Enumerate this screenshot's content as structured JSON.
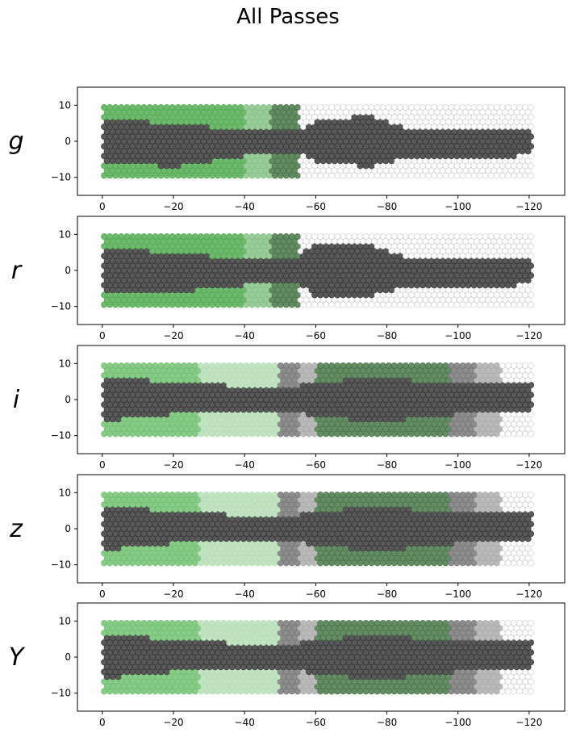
{
  "chart_data": {
    "type": "scatter",
    "title": "All Passes",
    "xlim": [
      7,
      -130
    ],
    "ylim": [
      -15,
      15
    ],
    "xticks": [
      0,
      -20,
      -40,
      -60,
      -80,
      -100,
      -120
    ],
    "yticks": [
      10,
      0,
      -10
    ],
    "grid": false,
    "panels": [
      {
        "label": "g",
        "outer_regions": [
          {
            "x_from": 0,
            "x_to": -40,
            "color": "#4aa84a"
          },
          {
            "x_from": -40,
            "x_to": -47,
            "color": "#7fbf7f"
          },
          {
            "x_from": -47,
            "x_to": -55,
            "color": "#3d6e3d"
          },
          {
            "x_from": -55,
            "x_to": -121,
            "color": "none"
          }
        ],
        "dark_band": [
          [
            0,
            -6,
            6
          ],
          [
            -20,
            -7,
            5
          ],
          [
            -40,
            -4,
            3
          ],
          [
            -55,
            -3,
            3
          ],
          [
            -60,
            -6,
            6
          ],
          [
            -75,
            -7,
            7
          ],
          [
            -85,
            -5,
            4
          ],
          [
            -120,
            -4,
            3
          ]
        ],
        "dark_color": "#3c3c3c"
      },
      {
        "label": "r",
        "outer_regions": [
          {
            "x_from": 0,
            "x_to": -40,
            "color": "#4aa84a"
          },
          {
            "x_from": -40,
            "x_to": -47,
            "color": "#7fbf7f"
          },
          {
            "x_from": -47,
            "x_to": -55,
            "color": "#3d6e3d"
          },
          {
            "x_from": -55,
            "x_to": -121,
            "color": "none"
          }
        ],
        "dark_band": [
          [
            0,
            -6,
            6
          ],
          [
            -20,
            -6,
            5
          ],
          [
            -40,
            -4,
            3
          ],
          [
            -55,
            -4,
            4
          ],
          [
            -60,
            -7,
            7
          ],
          [
            -75,
            -7,
            7
          ],
          [
            -85,
            -5,
            4
          ],
          [
            -120,
            -4,
            3
          ]
        ],
        "dark_color": "#3c3c3c"
      },
      {
        "label": "i",
        "outer_regions": [
          {
            "x_from": 0,
            "x_to": -27,
            "color": "#6abd6a"
          },
          {
            "x_from": -27,
            "x_to": -50,
            "color": "#b3dcb3"
          },
          {
            "x_from": -50,
            "x_to": -55,
            "color": "#707070"
          },
          {
            "x_from": -55,
            "x_to": -60,
            "color": "#a8a8a8"
          },
          {
            "x_from": -60,
            "x_to": -98,
            "color": "#3f6f3f"
          },
          {
            "x_from": -98,
            "x_to": -105,
            "color": "#707070"
          },
          {
            "x_from": -105,
            "x_to": -112,
            "color": "#a8a8a8"
          },
          {
            "x_from": -112,
            "x_to": -121,
            "color": "none"
          }
        ],
        "dark_band": [
          [
            0,
            -6,
            6
          ],
          [
            -20,
            -4,
            5
          ],
          [
            -50,
            -3,
            3
          ],
          [
            -62,
            -5,
            5
          ],
          [
            -80,
            -6,
            6
          ],
          [
            -100,
            -4,
            4
          ],
          [
            -120,
            -4,
            4
          ]
        ],
        "dark_color": "#3c3c3c"
      },
      {
        "label": "z",
        "outer_regions": [
          {
            "x_from": 0,
            "x_to": -27,
            "color": "#6abd6a"
          },
          {
            "x_from": -27,
            "x_to": -50,
            "color": "#b3dcb3"
          },
          {
            "x_from": -50,
            "x_to": -55,
            "color": "#707070"
          },
          {
            "x_from": -55,
            "x_to": -60,
            "color": "#a8a8a8"
          },
          {
            "x_from": -60,
            "x_to": -98,
            "color": "#3f6f3f"
          },
          {
            "x_from": -98,
            "x_to": -105,
            "color": "#707070"
          },
          {
            "x_from": -105,
            "x_to": -112,
            "color": "#a8a8a8"
          },
          {
            "x_from": -112,
            "x_to": -121,
            "color": "none"
          }
        ],
        "dark_band": [
          [
            0,
            -6,
            6
          ],
          [
            -20,
            -4,
            5
          ],
          [
            -50,
            -3,
            3
          ],
          [
            -62,
            -5,
            5
          ],
          [
            -80,
            -6,
            6
          ],
          [
            -100,
            -4,
            4
          ],
          [
            -120,
            -4,
            4
          ]
        ],
        "dark_color": "#3c3c3c"
      },
      {
        "label": "Y",
        "outer_regions": [
          {
            "x_from": 0,
            "x_to": -27,
            "color": "#6abd6a"
          },
          {
            "x_from": -27,
            "x_to": -50,
            "color": "#b3dcb3"
          },
          {
            "x_from": -50,
            "x_to": -55,
            "color": "#707070"
          },
          {
            "x_from": -55,
            "x_to": -60,
            "color": "#a8a8a8"
          },
          {
            "x_from": -60,
            "x_to": -98,
            "color": "#3f6f3f"
          },
          {
            "x_from": -98,
            "x_to": -105,
            "color": "#707070"
          },
          {
            "x_from": -105,
            "x_to": -112,
            "color": "#a8a8a8"
          },
          {
            "x_from": -112,
            "x_to": -121,
            "color": "none"
          }
        ],
        "dark_band": [
          [
            0,
            -6,
            6
          ],
          [
            -20,
            -4,
            5
          ],
          [
            -50,
            -3,
            3
          ],
          [
            -62,
            -5,
            5
          ],
          [
            -80,
            -6,
            6
          ],
          [
            -100,
            -4,
            4
          ],
          [
            -120,
            -4,
            4
          ]
        ],
        "dark_color": "#3c3c3c"
      }
    ]
  }
}
